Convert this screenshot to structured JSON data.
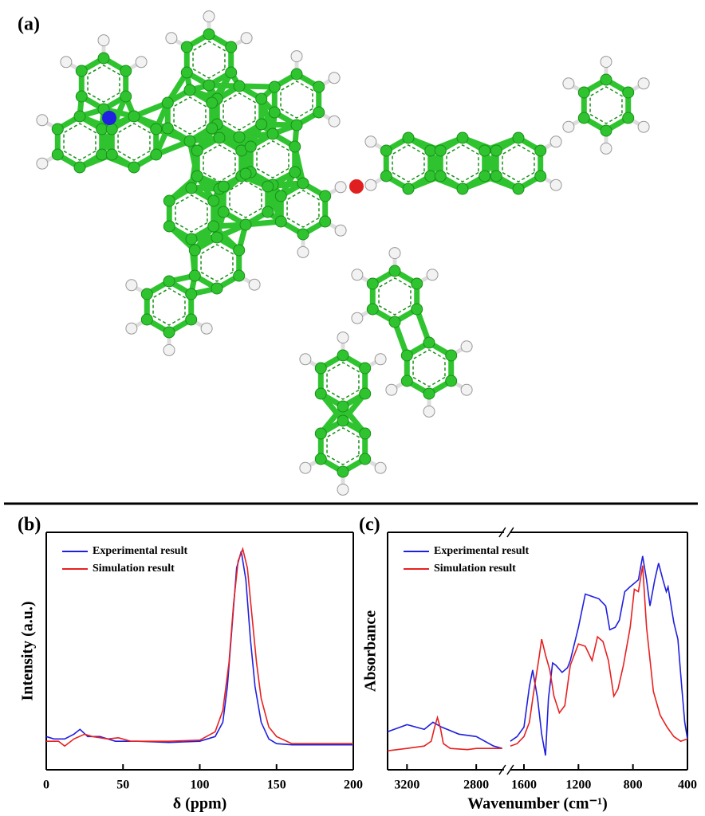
{
  "figure": {
    "panel_a": {
      "label": "(a)"
    }
  },
  "chart_data": [
    {
      "type": "line",
      "label": "(b)",
      "xlabel": "δ (ppm)",
      "ylabel": "Intensity (a.u.)",
      "xlim": [
        0,
        200
      ],
      "xticks": [
        0,
        50,
        100,
        150,
        200
      ],
      "ylim": [
        0,
        1
      ],
      "legend": "upper left",
      "series": [
        {
          "name": "Experimental result",
          "color": "#1f1fe0",
          "x": [
            0,
            5,
            12,
            18,
            22,
            27,
            35,
            45,
            60,
            80,
            100,
            110,
            115,
            118,
            121,
            124,
            127,
            130,
            133,
            136,
            140,
            145,
            150,
            160,
            180,
            200
          ],
          "values": [
            0.14,
            0.13,
            0.13,
            0.15,
            0.17,
            0.14,
            0.14,
            0.12,
            0.12,
            0.115,
            0.12,
            0.14,
            0.2,
            0.35,
            0.6,
            0.85,
            0.92,
            0.8,
            0.55,
            0.35,
            0.2,
            0.13,
            0.11,
            0.105,
            0.105,
            0.105
          ]
        },
        {
          "name": "Simulation result",
          "color": "#e82020",
          "x": [
            0,
            8,
            12,
            18,
            25,
            30,
            40,
            47,
            55,
            80,
            100,
            110,
            115,
            119,
            122,
            125,
            128,
            131,
            134,
            137,
            140,
            145,
            150,
            160,
            180,
            200
          ],
          "values": [
            0.12,
            0.12,
            0.1,
            0.13,
            0.15,
            0.14,
            0.13,
            0.135,
            0.12,
            0.12,
            0.125,
            0.16,
            0.25,
            0.45,
            0.7,
            0.88,
            0.93,
            0.85,
            0.65,
            0.45,
            0.3,
            0.18,
            0.14,
            0.11,
            0.11,
            0.11
          ]
        }
      ]
    },
    {
      "type": "line",
      "label": "(c)",
      "xlabel": "Wavenumber (cm⁻¹)",
      "ylabel": "Absorbance",
      "xlim": [
        3312,
        400
      ],
      "xbreak": [
        2640,
        1700
      ],
      "xticks": [
        3200,
        2800,
        1600,
        1200,
        800,
        400
      ],
      "ylim": [
        0,
        1
      ],
      "legend": "upper left",
      "series": [
        {
          "name": "Experimental result",
          "color": "#1f1fe0",
          "x": [
            3312,
            3200,
            3100,
            3050,
            3000,
            2900,
            2800,
            2700,
            2650,
            null,
            1700,
            1650,
            1600,
            1560,
            1536,
            1500,
            1470,
            1442,
            1420,
            1390,
            1366,
            1320,
            1280,
            1260,
            1200,
            1150,
            1100,
            1050,
            1000,
            970,
            930,
            900,
            860,
            822,
            760,
            729,
            700,
            675,
            640,
            612,
            580,
            555,
            542,
            500,
            470,
            442,
            420,
            400
          ],
          "values": [
            0.16,
            0.19,
            0.17,
            0.2,
            0.18,
            0.15,
            0.14,
            0.1,
            0.09,
            null,
            0.12,
            0.14,
            0.18,
            0.35,
            0.42,
            0.3,
            0.15,
            0.06,
            0.3,
            0.45,
            0.44,
            0.41,
            0.43,
            0.46,
            0.6,
            0.74,
            0.73,
            0.72,
            0.69,
            0.59,
            0.6,
            0.63,
            0.75,
            0.77,
            0.8,
            0.9,
            0.8,
            0.69,
            0.8,
            0.87,
            0.8,
            0.75,
            0.77,
            0.62,
            0.55,
            0.35,
            0.2,
            0.13
          ]
        },
        {
          "name": "Simulation result",
          "color": "#e82020",
          "x": [
            3312,
            3200,
            3100,
            3060,
            3040,
            3024,
            3005,
            2990,
            2950,
            2850,
            2800,
            2700,
            2650,
            null,
            1700,
            1650,
            1600,
            1560,
            1530,
            1490,
            1470,
            1440,
            1410,
            1380,
            1340,
            1300,
            1260,
            1200,
            1150,
            1100,
            1060,
            1020,
            980,
            940,
            910,
            870,
            820,
            790,
            760,
            729,
            700,
            650,
            600,
            550,
            500,
            450,
            400
          ],
          "values": [
            0.08,
            0.09,
            0.1,
            0.12,
            0.18,
            0.22,
            0.17,
            0.11,
            0.09,
            0.085,
            0.09,
            0.09,
            0.09,
            null,
            0.1,
            0.11,
            0.14,
            0.2,
            0.32,
            0.47,
            0.55,
            0.48,
            0.42,
            0.31,
            0.24,
            0.27,
            0.44,
            0.53,
            0.52,
            0.46,
            0.56,
            0.54,
            0.46,
            0.31,
            0.34,
            0.44,
            0.6,
            0.76,
            0.75,
            0.86,
            0.6,
            0.33,
            0.23,
            0.18,
            0.14,
            0.12,
            0.13
          ]
        }
      ]
    }
  ]
}
